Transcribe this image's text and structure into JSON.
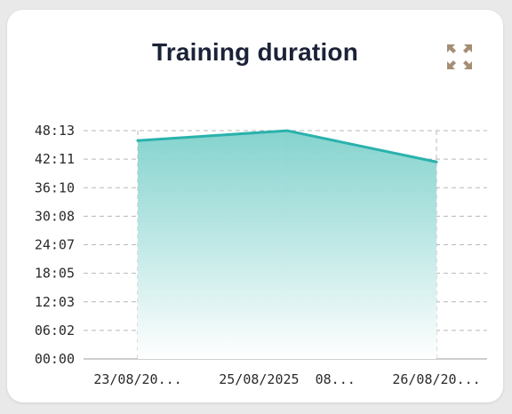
{
  "card": {
    "title": "Training duration",
    "expand_icon": "expand-arrows-icon"
  },
  "colors": {
    "line": "#2ab2ac",
    "fill_top": "#7fd1cc",
    "fill_bottom": "#ffffff",
    "grid": "#b8b8b8",
    "icon": "#a58e74"
  },
  "chart_data": {
    "type": "area",
    "title": "Training duration",
    "categories": [
      "23/08/20...",
      "25/08/2025  08...",
      "26/08/20..."
    ],
    "series": [
      {
        "values": [
          46.1,
          48.2,
          41.6
        ]
      }
    ],
    "y_ticks": [
      "00:00",
      "06:02",
      "12:03",
      "18:05",
      "24:07",
      "30:08",
      "36:10",
      "42:11",
      "48:13"
    ],
    "ylim": [
      0,
      48.2167
    ],
    "grid": true,
    "grid_style": "dashed"
  }
}
